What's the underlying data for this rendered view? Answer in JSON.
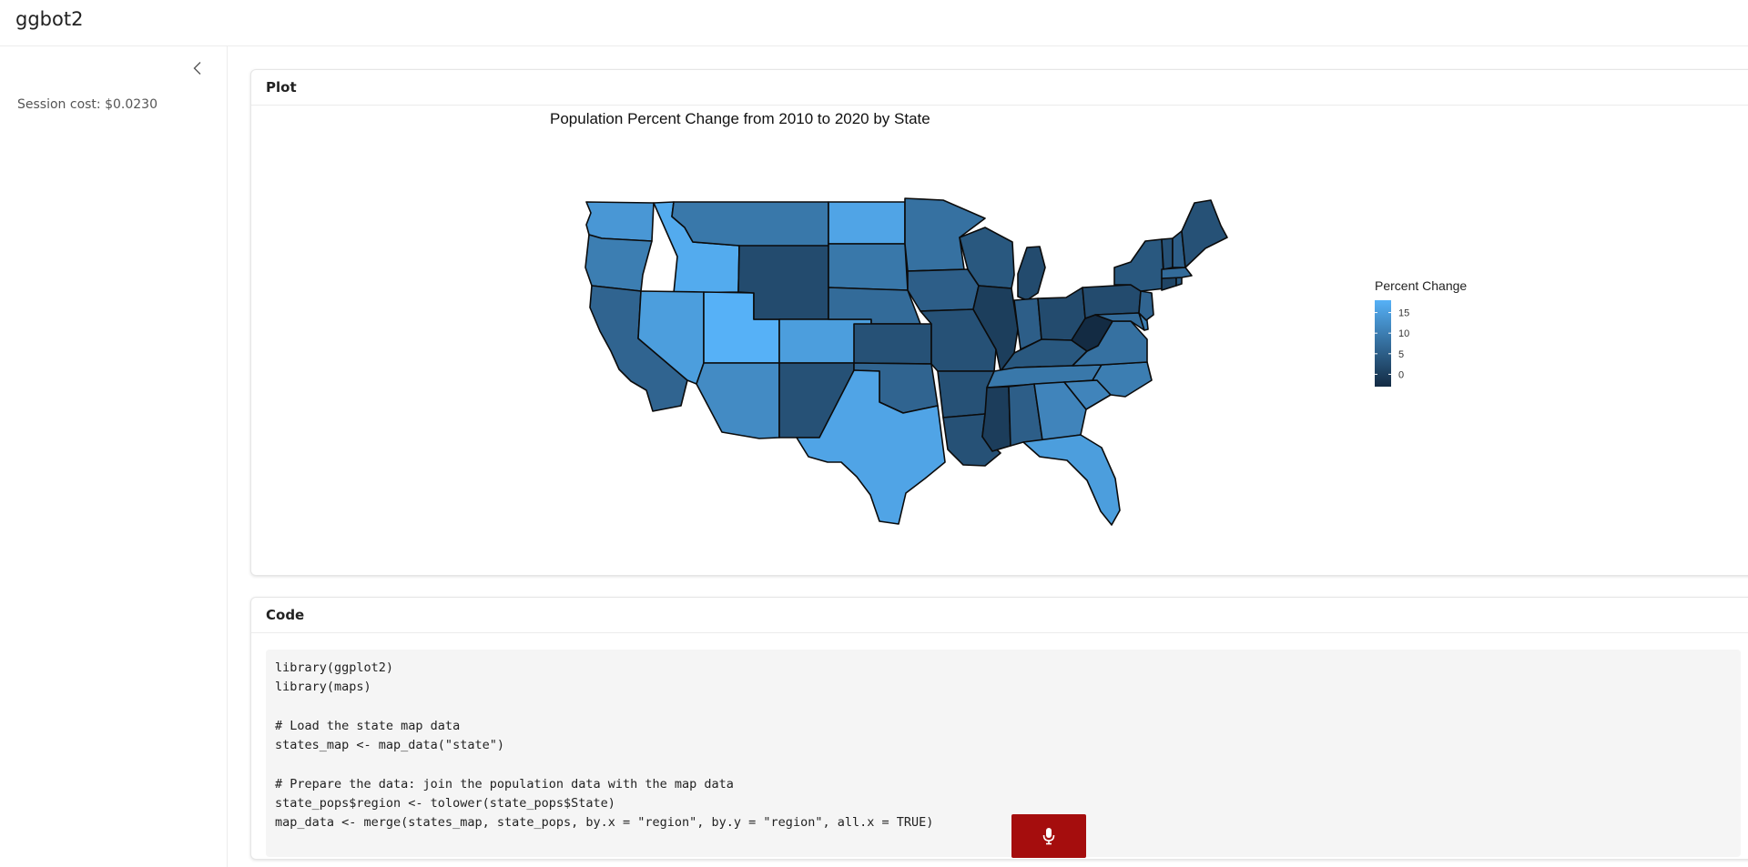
{
  "app": {
    "title": "ggbot2"
  },
  "sidebar": {
    "session_cost": "Session cost: $0.0230",
    "collapse_icon": "chevron-left-icon"
  },
  "plot_card": {
    "header": "Plot"
  },
  "code_card": {
    "header": "Code",
    "lines": [
      "library(ggplot2)",
      "library(maps)",
      "",
      "# Load the state map data",
      "states_map <- map_data(\"state\")",
      "",
      "# Prepare the data: join the population data with the map data",
      "state_pops$region <- tolower(state_pops$State)",
      "map_data <- merge(states_map, state_pops, by.x = \"region\", by.y = \"region\", all.x = TRUE)"
    ]
  },
  "mic_button": {
    "icon": "microphone-icon",
    "color": "#a50d0d"
  },
  "chart_data": {
    "type": "choropleth",
    "title": "Population Percent Change from 2010 to 2020 by State",
    "legend": {
      "title": "Percent Change",
      "ticks": [
        "15",
        "10",
        "5",
        "0"
      ],
      "placement": "right",
      "scale_low": "#132b43",
      "scale_high": "#56b1f7"
    },
    "regions": [
      {
        "name": "Washington",
        "value": 14
      },
      {
        "name": "Oregon",
        "value": 10
      },
      {
        "name": "California",
        "value": 6
      },
      {
        "name": "Idaho",
        "value": 17
      },
      {
        "name": "Nevada",
        "value": 15
      },
      {
        "name": "Utah",
        "value": 18
      },
      {
        "name": "Arizona",
        "value": 12
      },
      {
        "name": "Montana",
        "value": 9
      },
      {
        "name": "Wyoming",
        "value": 2
      },
      {
        "name": "Colorado",
        "value": 15
      },
      {
        "name": "New Mexico",
        "value": 3
      },
      {
        "name": "North Dakota",
        "value": 16
      },
      {
        "name": "South Dakota",
        "value": 9
      },
      {
        "name": "Nebraska",
        "value": 7
      },
      {
        "name": "Kansas",
        "value": 3
      },
      {
        "name": "Oklahoma",
        "value": 6
      },
      {
        "name": "Texas",
        "value": 16
      },
      {
        "name": "Minnesota",
        "value": 8
      },
      {
        "name": "Iowa",
        "value": 5
      },
      {
        "name": "Missouri",
        "value": 3
      },
      {
        "name": "Arkansas",
        "value": 3
      },
      {
        "name": "Louisiana",
        "value": 3
      },
      {
        "name": "Wisconsin",
        "value": 4
      },
      {
        "name": "Illinois",
        "value": -0.1
      },
      {
        "name": "Michigan",
        "value": 2
      },
      {
        "name": "Indiana",
        "value": 5
      },
      {
        "name": "Ohio",
        "value": 2
      },
      {
        "name": "Kentucky",
        "value": 4
      },
      {
        "name": "Tennessee",
        "value": 9
      },
      {
        "name": "Mississippi",
        "value": -0.2
      },
      {
        "name": "Alabama",
        "value": 5
      },
      {
        "name": "Georgia",
        "value": 11
      },
      {
        "name": "Florida",
        "value": 15
      },
      {
        "name": "South Carolina",
        "value": 11
      },
      {
        "name": "North Carolina",
        "value": 10
      },
      {
        "name": "Virginia",
        "value": 8
      },
      {
        "name": "West Virginia",
        "value": -3
      },
      {
        "name": "Pennsylvania",
        "value": 2
      },
      {
        "name": "New York",
        "value": 4
      },
      {
        "name": "Maryland",
        "value": 7
      },
      {
        "name": "Delaware",
        "value": 10
      },
      {
        "name": "New Jersey",
        "value": 6
      },
      {
        "name": "Connecticut",
        "value": 1
      },
      {
        "name": "Rhode Island",
        "value": 4
      },
      {
        "name": "Massachusetts",
        "value": 7
      },
      {
        "name": "Vermont",
        "value": 3
      },
      {
        "name": "New Hampshire",
        "value": 5
      },
      {
        "name": "Maine",
        "value": 3
      }
    ]
  }
}
